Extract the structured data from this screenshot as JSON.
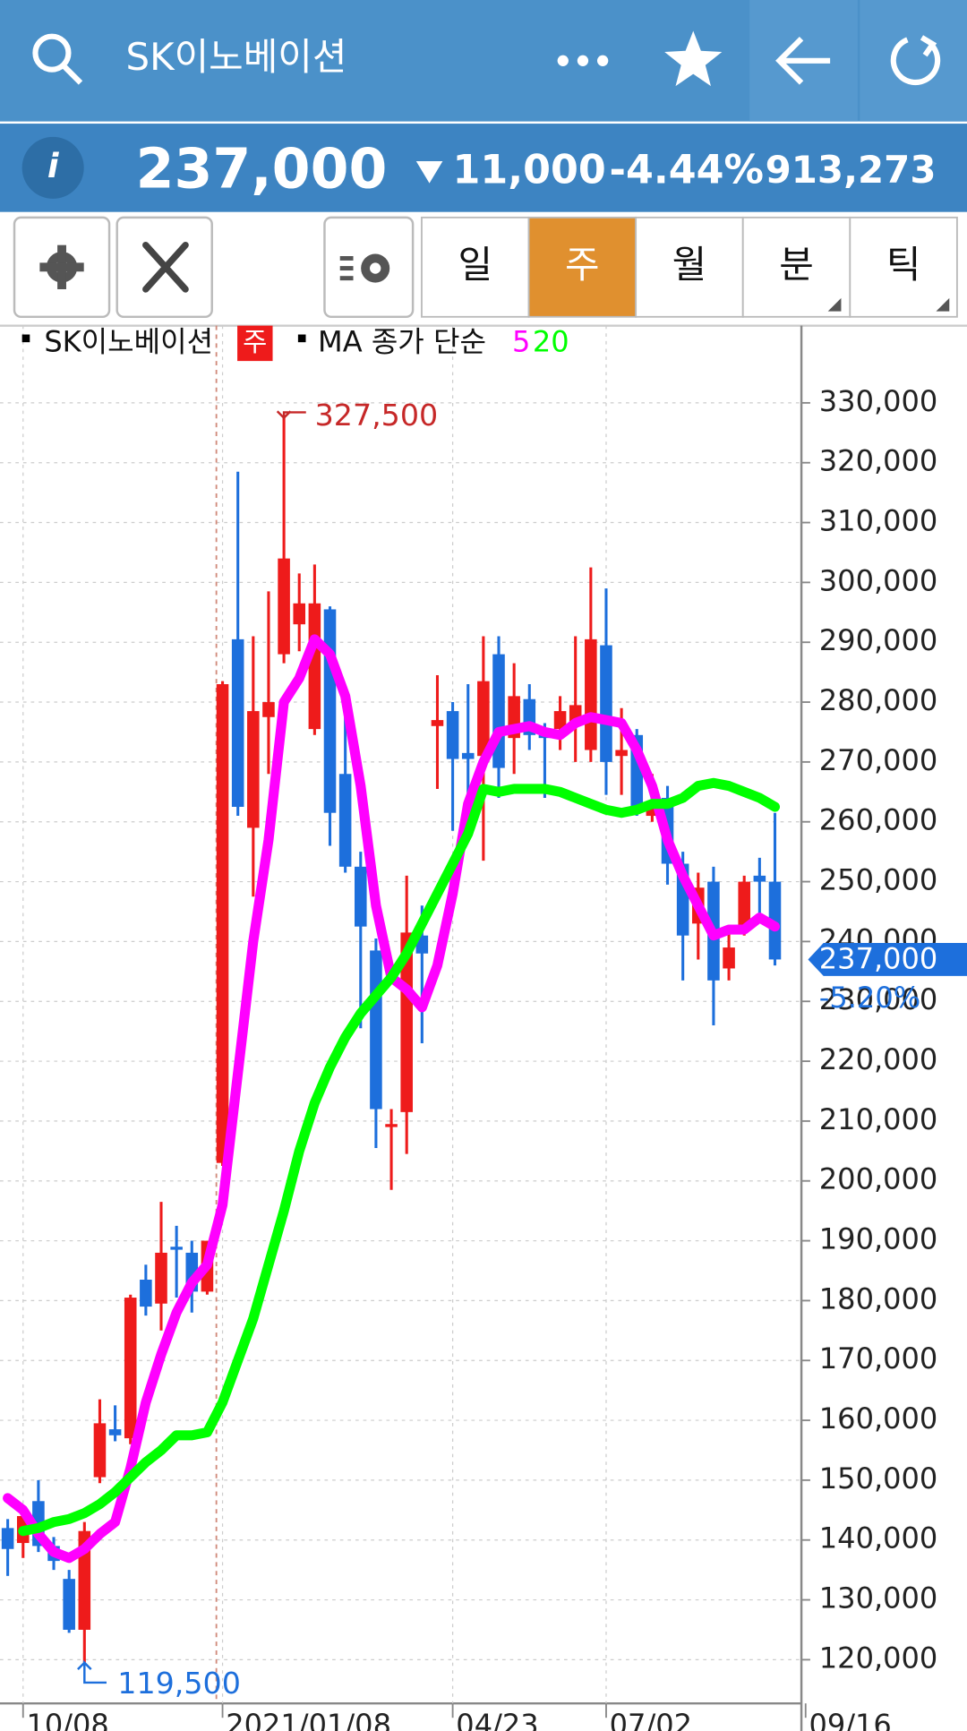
{
  "header": {
    "title": "SK이노베이션"
  },
  "price_bar": {
    "price": "237,000",
    "change": "11,000",
    "change_pct": "-4.44%",
    "volume": "913,273"
  },
  "tabs": [
    "일",
    "주",
    "월",
    "분",
    "틱"
  ],
  "selected_tab": "주",
  "legend": {
    "symbol": "SK이노베이션",
    "period": "주",
    "ma_label": "MA 종가 단순"
  },
  "chart_data": {
    "type": "candlestick",
    "categories": [
      null,
      "10/08",
      null,
      null,
      null,
      null,
      null,
      null,
      null,
      null,
      null,
      null,
      null,
      null,
      "2021/01/08",
      null,
      null,
      null,
      null,
      null,
      null,
      null,
      null,
      null,
      null,
      null,
      null,
      null,
      null,
      "04/23",
      null,
      null,
      null,
      null,
      null,
      null,
      null,
      null,
      null,
      "07/02",
      null,
      null,
      null,
      null,
      null,
      null,
      null,
      null,
      null,
      null,
      null,
      null,
      "09/16"
    ],
    "open": [
      142000,
      139500,
      146500,
      139000,
      133500,
      125000,
      150500,
      158500,
      157000,
      183500,
      179500,
      189000,
      188000,
      181500,
      203000,
      290500,
      259000,
      277500,
      288000,
      293000,
      275500,
      295500,
      268000,
      252500,
      238500,
      209000,
      211500,
      241000,
      276000,
      278500,
      271500,
      271000,
      288000,
      274000,
      280500,
      274500,
      275500,
      276500,
      272000,
      289500,
      271000,
      274500,
      261000,
      264000,
      253000,
      243000,
      250000,
      235500,
      242000,
      251000,
      250000,
      null,
      null
    ],
    "high": [
      143500,
      145000,
      150000,
      140500,
      135000,
      143000,
      163500,
      162500,
      181000,
      186000,
      196500,
      192500,
      190000,
      190000,
      283500,
      318500,
      291000,
      298500,
      327500,
      301500,
      303000,
      296000,
      278500,
      255000,
      240500,
      212000,
      251000,
      246000,
      284500,
      280000,
      283000,
      291000,
      291000,
      286500,
      283000,
      276500,
      281000,
      291000,
      302500,
      299000,
      279000,
      275500,
      268000,
      266000,
      255000,
      251500,
      252500,
      242000,
      251000,
      254000,
      261500,
      null,
      null
    ],
    "low": [
      134000,
      137000,
      138000,
      135000,
      124500,
      119500,
      149500,
      156500,
      156000,
      177500,
      175000,
      180500,
      178000,
      181000,
      202500,
      261000,
      247500,
      268000,
      286500,
      288500,
      274500,
      256000,
      251500,
      225500,
      205500,
      198500,
      204500,
      223000,
      265500,
      258500,
      264500,
      253500,
      264000,
      268000,
      272000,
      264000,
      272000,
      270000,
      270000,
      264500,
      264500,
      261000,
      260000,
      249500,
      233500,
      237000,
      226000,
      233500,
      241000,
      244000,
      236000,
      null,
      null
    ],
    "close": [
      138500,
      144000,
      139000,
      136500,
      125000,
      141500,
      159500,
      157500,
      180500,
      179000,
      188000,
      188500,
      181500,
      190000,
      283000,
      262500,
      278500,
      280000,
      304000,
      296500,
      296500,
      261500,
      252500,
      242500,
      212000,
      209500,
      241500,
      238000,
      277000,
      270500,
      270500,
      283500,
      269000,
      281000,
      274500,
      274000,
      278500,
      279500,
      290500,
      270000,
      272000,
      262500,
      262500,
      253000,
      241000,
      249000,
      233500,
      239000,
      250000,
      250000,
      237000,
      null,
      null
    ],
    "up_color": "#ee1b1b",
    "down_color": "#1d6fdc",
    "moving_averages": [
      {
        "name": "5",
        "color": "#ff00ff",
        "values": [
          147000,
          145000,
          141000,
          138000,
          137000,
          138500,
          141000,
          143000,
          152000,
          163000,
          171000,
          178000,
          183000,
          186000,
          196000,
          218000,
          240000,
          257000,
          280000,
          284000,
          290500,
          288000,
          281000,
          266000,
          246000,
          234000,
          232000,
          229000,
          236000,
          248000,
          263000,
          270000,
          275000,
          275500,
          276000,
          275000,
          274500,
          276500,
          277500,
          277000,
          276500,
          272000,
          266000,
          257000,
          251000,
          246000,
          241000,
          242000,
          242000,
          244000,
          242500,
          null,
          null
        ]
      },
      {
        "name": "20",
        "color": "#00ff00",
        "values": [
          null,
          141500,
          142000,
          143000,
          143500,
          144500,
          146000,
          148000,
          150500,
          153000,
          155000,
          157500,
          157500,
          158000,
          163000,
          170000,
          177000,
          186000,
          195000,
          205000,
          213000,
          219000,
          224000,
          228000,
          231000,
          234000,
          238000,
          243000,
          248000,
          253000,
          258000,
          265500,
          265000,
          265500,
          265500,
          265500,
          265000,
          264000,
          263000,
          262000,
          261500,
          262000,
          263000,
          263000,
          264000,
          266000,
          266500,
          266000,
          265000,
          264000,
          262500,
          null,
          null
        ]
      }
    ],
    "ylim": [
      112700,
      342900
    ],
    "yticks": [
      {
        "value": 120000,
        "label": "120,000"
      },
      {
        "value": 130000,
        "label": "130,000"
      },
      {
        "value": 140000,
        "label": "140,000"
      },
      {
        "value": 150000,
        "label": "150,000"
      },
      {
        "value": 160000,
        "label": "160,000"
      },
      {
        "value": 170000,
        "label": "170,000"
      },
      {
        "value": 180000,
        "label": "180,000"
      },
      {
        "value": 190000,
        "label": "190,000"
      },
      {
        "value": 200000,
        "label": "200,000"
      },
      {
        "value": 210000,
        "label": "210,000"
      },
      {
        "value": 220000,
        "label": "220,000"
      },
      {
        "value": 230000,
        "label": "230,000"
      },
      {
        "value": 240000,
        "label": "240,000"
      },
      {
        "value": 250000,
        "label": "250,000"
      },
      {
        "value": 260000,
        "label": "260,000"
      },
      {
        "value": 270000,
        "label": "270,000"
      },
      {
        "value": 280000,
        "label": "280,000"
      },
      {
        "value": 290000,
        "label": "290,000"
      },
      {
        "value": 300000,
        "label": "300,000"
      },
      {
        "value": 310000,
        "label": "310,000"
      },
      {
        "value": 320000,
        "label": "320,000"
      },
      {
        "value": 330000,
        "label": "330,000"
      }
    ],
    "grid": true,
    "high_marker": {
      "value": 327500,
      "label": "327,500"
    },
    "low_marker": {
      "value": 119500,
      "label": "119,500"
    },
    "current": {
      "value": 237000,
      "label": "237,000",
      "change": "-5.20%"
    }
  }
}
